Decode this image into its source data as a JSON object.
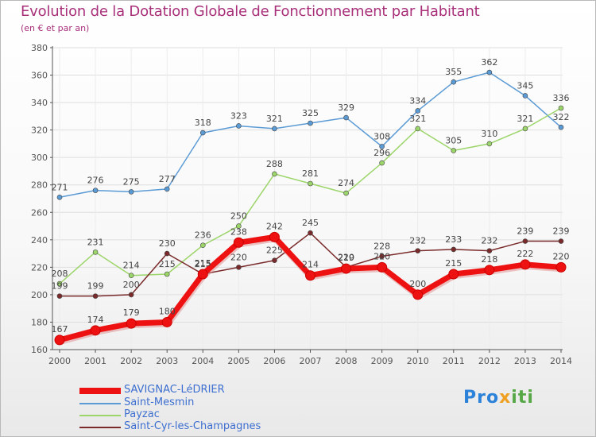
{
  "title": "Evolution de la Dotation Globale de Fonctionnement par Habitant",
  "subtitle": "(en € et par an)",
  "brand": {
    "p1": "Pro",
    "p2": "x",
    "p3": "iti"
  },
  "colors": {
    "title": "#a8307a",
    "axis": "#555555",
    "grid": "#dedede",
    "legend_text": "#3d6fd0"
  },
  "chart_data": {
    "type": "line",
    "title": "Evolution de la Dotation Globale de Fonctionnement par Habitant",
    "ylabel": "(en € et par an)",
    "xlabel": "",
    "ylim": [
      160,
      380
    ],
    "yticks": [
      160,
      180,
      200,
      220,
      240,
      260,
      280,
      300,
      320,
      340,
      360,
      380
    ],
    "x": [
      "2000",
      "2001",
      "2002",
      "2003",
      "2004",
      "2005",
      "2006",
      "2007",
      "2008",
      "2009",
      "2010",
      "2011",
      "2012",
      "2013",
      "2014"
    ],
    "legend_position": "bottom-left",
    "series": [
      {
        "name": "Saint-Mesmin",
        "color": "#5b9bd5",
        "values": [
          271,
          276,
          275,
          277,
          318,
          323,
          321,
          325,
          329,
          308,
          334,
          355,
          362,
          345,
          322
        ]
      },
      {
        "name": "Payzac",
        "color": "#9cd56a",
        "values": [
          208,
          231,
          214,
          215,
          236,
          250,
          288,
          281,
          274,
          296,
          321,
          305,
          310,
          321,
          336
        ]
      },
      {
        "name": "Saint-Cyr-les-Champagnes",
        "color": "#7a2a2a",
        "values": [
          199,
          199,
          200,
          230,
          215,
          220,
          225,
          245,
          220,
          228,
          232,
          233,
          232,
          239,
          239
        ]
      },
      {
        "name": "SAVIGNAC-LéDRIER",
        "color": "#ee1111",
        "values": [
          167,
          174,
          179,
          180,
          215,
          238,
          242,
          214,
          219,
          220,
          200,
          215,
          218,
          222,
          220
        ]
      }
    ]
  }
}
